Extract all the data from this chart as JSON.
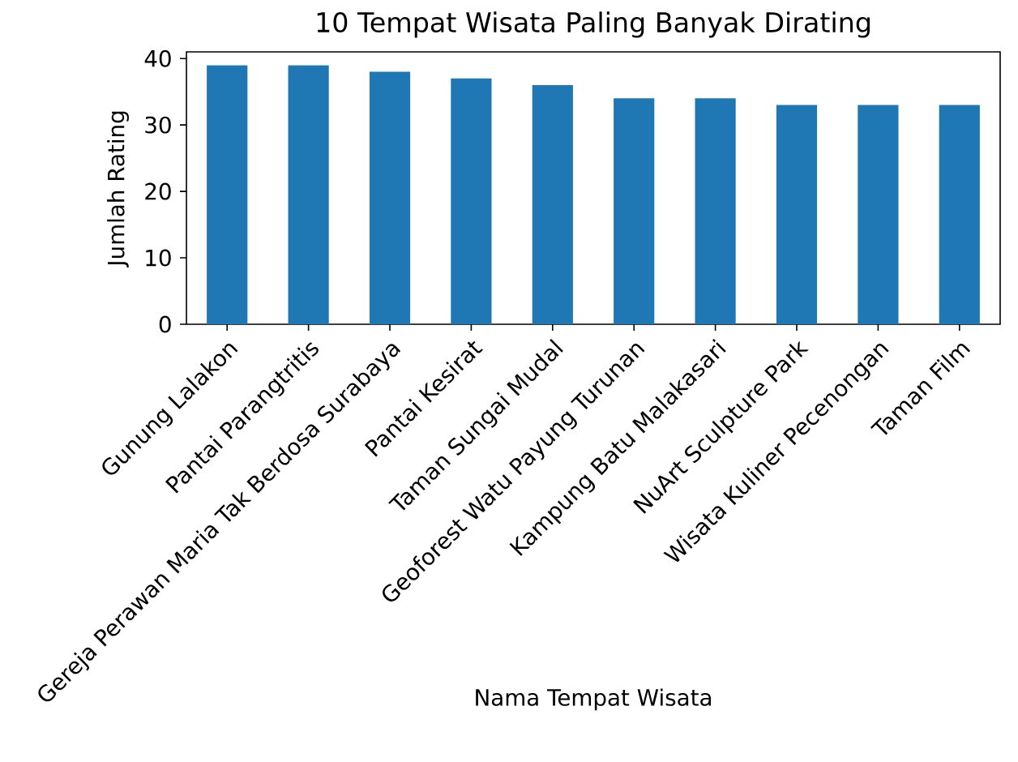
{
  "chart_data": {
    "type": "bar",
    "title": "10 Tempat Wisata Paling Banyak Dirating",
    "xlabel": "Nama Tempat Wisata",
    "ylabel": "Jumlah Rating",
    "categories": [
      "Gunung Lalakon",
      "Pantai Parangtritis",
      "Gereja Perawan Maria Tak Berdosa Surabaya",
      "Pantai Kesirat",
      "Taman Sungai Mudal",
      "Geoforest Watu Payung Turunan",
      "Kampung Batu Malakasari",
      "NuArt Sculpture Park",
      "Wisata Kuliner Pecenongan",
      "Taman Film"
    ],
    "values": [
      39,
      39,
      38,
      37,
      36,
      34,
      34,
      33,
      33,
      33
    ],
    "color": "#1f77b4",
    "ylim": [
      0,
      41
    ],
    "yticks": [
      0,
      10,
      20,
      30,
      40
    ],
    "grid": false
  }
}
